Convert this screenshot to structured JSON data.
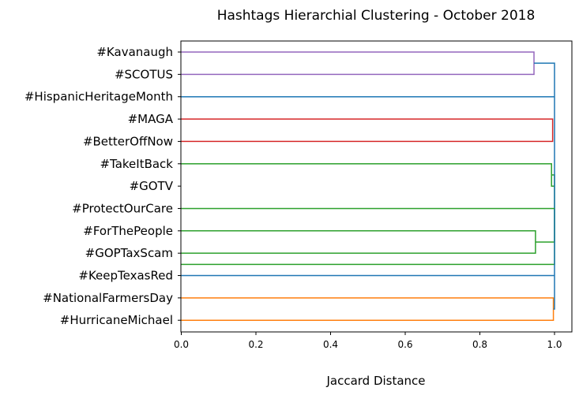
{
  "chart_data": {
    "type": "dendrogram",
    "title": "Hashtags Hierarchial Clustering - October 2018",
    "xlabel": "Jaccard Distance",
    "xlim": [
      0,
      1.05
    ],
    "xticks": [
      "0.0",
      "0.2",
      "0.4",
      "0.6",
      "0.8",
      "1.0"
    ],
    "xtick_values": [
      0,
      0.2,
      0.4,
      0.6,
      0.8,
      1.0
    ],
    "leaves": [
      "#Kavanaugh",
      "#SCOTUS",
      "#HispanicHeritageMonth",
      "#MAGA",
      "#BetterOffNow",
      "#TakeItBack",
      "#GOTV",
      "#ProtectOurCare",
      "#ForThePeople",
      "#GOPTaxScam",
      "#KeepTexasRed",
      "#NationalFarmersDay",
      "#HurricaneMichael"
    ],
    "links": [
      {
        "x": 0.945,
        "from": 0,
        "to": 1,
        "color": "#9467bd"
      },
      {
        "x": 0.995,
        "from": 3,
        "to": 4,
        "color": "#d62728"
      },
      {
        "x": 0.992,
        "from": 5,
        "to": 6,
        "color": "#2ca02c"
      },
      {
        "x": 0.949,
        "from": 8,
        "to": 9,
        "color": "#2ca02c"
      },
      {
        "x": 1.0,
        "from": 7,
        "to": 9.5,
        "color": "#2ca02c"
      },
      {
        "x": 1.0,
        "from": 5.5,
        "to": 8.5,
        "color": "#2ca02c"
      },
      {
        "x": 0.997,
        "from": 11,
        "to": 12,
        "color": "#ff7f0e"
      },
      {
        "x": 1.0,
        "from": 0.5,
        "to": 11.5,
        "color": "#1f77b4"
      }
    ],
    "direct_leaves": [
      {
        "leaf": 2,
        "color": "#1f77b4"
      },
      {
        "leaf": 7,
        "color": "#2ca02c"
      },
      {
        "leaf": 10,
        "color": "#1f77b4"
      }
    ],
    "grid": false
  }
}
